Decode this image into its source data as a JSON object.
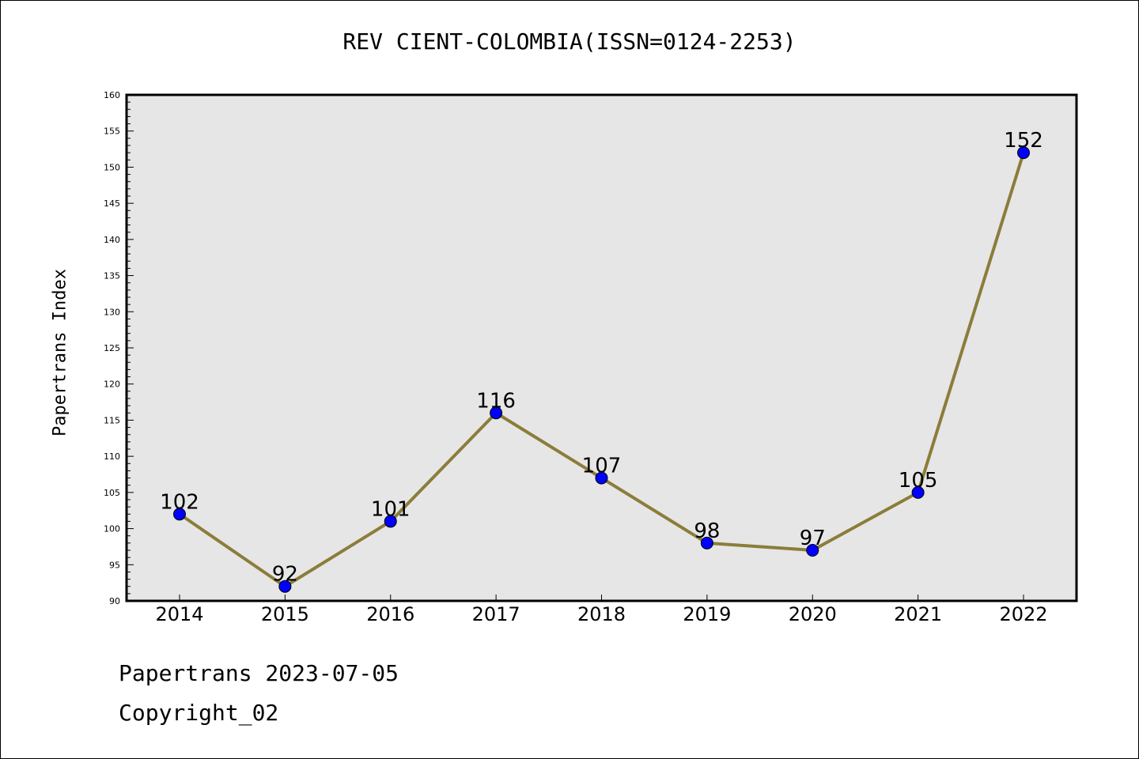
{
  "chart_data": {
    "type": "line",
    "title": "REV CIENT-COLOMBIA(ISSN=0124-2253)",
    "xlabel": "",
    "ylabel": "Papertrans Index",
    "categories": [
      "2014",
      "2015",
      "2016",
      "2017",
      "2018",
      "2019",
      "2020",
      "2021",
      "2022"
    ],
    "values": [
      102,
      92,
      101,
      116,
      107,
      98,
      97,
      105,
      152
    ],
    "ylim": [
      90,
      160
    ],
    "yticks": [
      90,
      95,
      100,
      105,
      110,
      115,
      120,
      125,
      130,
      135,
      140,
      145,
      150,
      155,
      160
    ],
    "grid": false,
    "colors": {
      "plot_background": "#e6e6e6",
      "line": "#8b7d3a",
      "marker": "#0000ff"
    }
  },
  "footer": {
    "line1": "Papertrans 2023-07-05",
    "line2": "Copyright_02"
  }
}
